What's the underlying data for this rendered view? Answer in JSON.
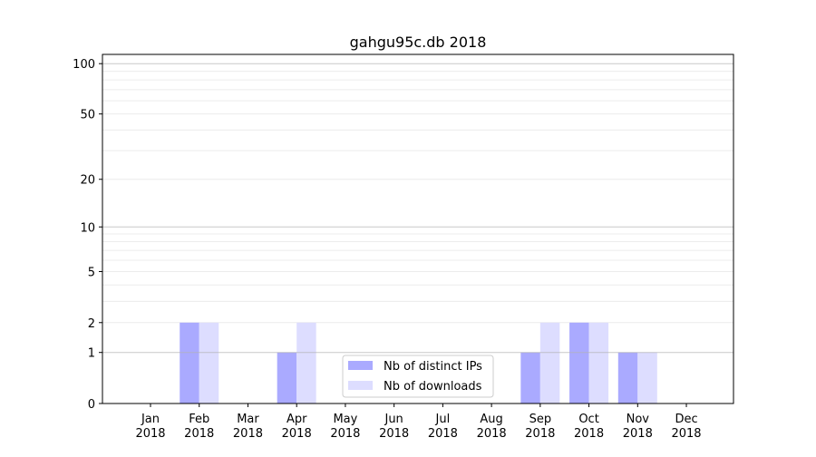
{
  "chart_data": {
    "type": "bar",
    "title": "gahgu95c.db 2018",
    "xlabel": "",
    "ylabel": "",
    "yscale": "symlog (log10(1+y))",
    "ylim": [
      0,
      114
    ],
    "grid": "horizontal, major and minor",
    "legend_position": "bottom-center",
    "categories": [
      "Jan\n2018",
      "Feb\n2018",
      "Mar\n2018",
      "Apr\n2018",
      "May\n2018",
      "Jun\n2018",
      "Jul\n2018",
      "Aug\n2018",
      "Sep\n2018",
      "Oct\n2018",
      "Nov\n2018",
      "Dec\n2018"
    ],
    "yticks": [
      0,
      1,
      2,
      5,
      10,
      20,
      50,
      100
    ],
    "series": [
      {
        "name": "Nb of distinct IPs",
        "color": "#aaaaff",
        "values": [
          0,
          2,
          0,
          1,
          0,
          0,
          0,
          0,
          1,
          2,
          1,
          0
        ]
      },
      {
        "name": "Nb of downloads",
        "color": "#ddddff",
        "values": [
          0,
          2,
          0,
          2,
          0,
          0,
          0,
          0,
          2,
          2,
          1,
          0
        ]
      }
    ]
  }
}
